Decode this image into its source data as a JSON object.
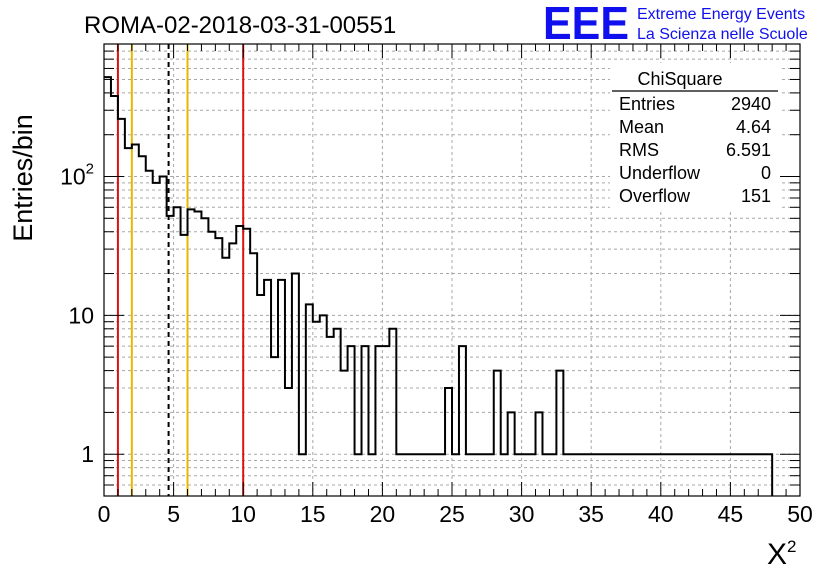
{
  "chart_data": {
    "type": "histogram",
    "title": "ROMA-02-2018-03-31-00551",
    "xlabel": "X",
    "xlabel_superscript": "2",
    "ylabel": "Entries/bin",
    "xlim": [
      0,
      50
    ],
    "ylim": [
      0.5,
      900
    ],
    "yscale": "log",
    "grid": true,
    "bin_width": 0.5,
    "x_ticks": [
      "0",
      "5",
      "10",
      "15",
      "20",
      "25",
      "30",
      "35",
      "40",
      "45",
      "50"
    ],
    "y_ticks": [
      {
        "value": 1,
        "label": "1"
      },
      {
        "value": 10,
        "label": "10"
      },
      {
        "value": 100,
        "label": "10",
        "exponent": "2"
      }
    ],
    "counts": [
      520,
      380,
      260,
      160,
      170,
      140,
      110,
      90,
      100,
      52,
      60,
      38,
      58,
      56,
      50,
      40,
      36,
      26,
      33,
      44,
      42,
      28,
      14,
      18,
      5,
      18,
      3,
      20,
      1,
      12,
      9,
      10,
      7,
      8,
      4,
      6,
      1,
      6,
      1,
      6,
      6,
      8,
      1,
      1,
      1,
      1,
      1,
      1,
      1,
      3,
      1,
      6,
      1,
      1,
      1,
      1,
      4,
      1,
      2,
      1,
      1,
      1,
      2,
      1,
      1,
      4,
      1,
      1,
      1,
      1,
      1,
      1,
      1,
      1,
      1,
      1,
      1,
      1,
      1,
      1,
      1,
      1,
      1,
      1,
      1,
      1,
      1,
      1,
      1,
      1,
      1,
      1,
      1,
      1,
      1,
      1
    ],
    "vertical_lines": [
      {
        "x": 1.0,
        "color": "#e01010",
        "style": "solid"
      },
      {
        "x": 2.0,
        "color": "#e8b800",
        "style": "solid"
      },
      {
        "x": 4.64,
        "color": "#000000",
        "style": "dashed"
      },
      {
        "x": 6.0,
        "color": "#e8b800",
        "style": "solid"
      },
      {
        "x": 10.0,
        "color": "#e01010",
        "style": "solid"
      }
    ],
    "stats_box": {
      "title": "ChiSquare",
      "rows": [
        {
          "label": "Entries",
          "value": "2940"
        },
        {
          "label": "Mean",
          "value": "4.64"
        },
        {
          "label": "RMS",
          "value": "6.591"
        },
        {
          "label": "Underflow",
          "value": "0"
        },
        {
          "label": "Overflow",
          "value": "151"
        }
      ]
    }
  },
  "logo": {
    "text": "EEE",
    "line1": "Extreme Energy Events",
    "line2": "La Scienza nelle Scuole",
    "color": "#1010ee"
  }
}
